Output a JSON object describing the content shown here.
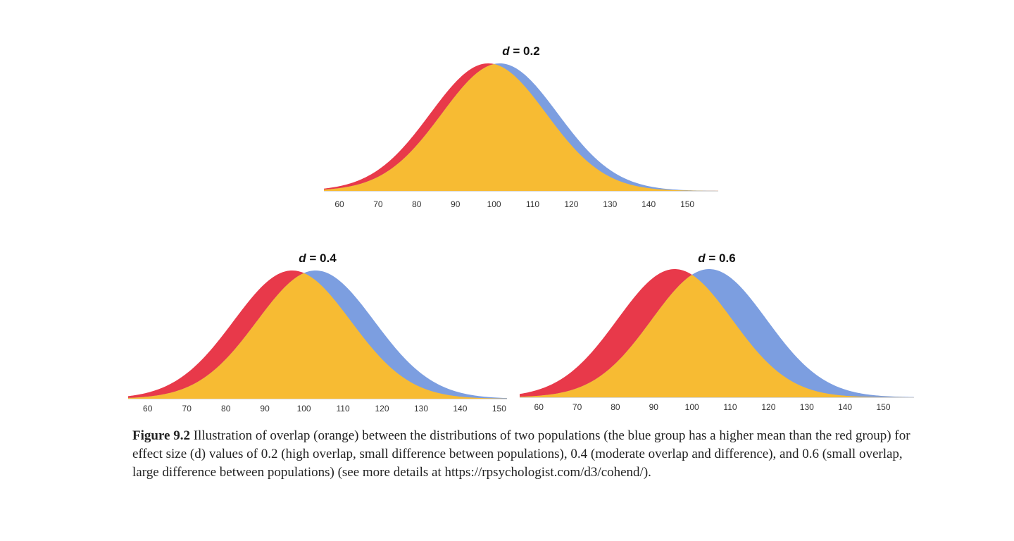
{
  "colors": {
    "red": "#e8394a",
    "blue": "#7c9ee0",
    "overlap": "#f7bb33"
  },
  "chart_data": [
    {
      "type": "area",
      "title_symbol": "d",
      "title_rest": " = 0.2",
      "effect_size": 0.2,
      "series": [
        {
          "name": "red group",
          "color": "red",
          "mean": 98.5,
          "sd": 15
        },
        {
          "name": "blue group",
          "color": "blue",
          "mean": 101.5,
          "sd": 15
        },
        {
          "name": "overlap",
          "color": "orange"
        }
      ],
      "xlim": [
        56,
        158
      ],
      "xticks": [
        "60",
        "70",
        "80",
        "90",
        "100",
        "110",
        "120",
        "130",
        "140",
        "150"
      ],
      "grid": false
    },
    {
      "type": "area",
      "title_symbol": "d",
      "title_rest": " = 0.4",
      "effect_size": 0.4,
      "series": [
        {
          "name": "red group",
          "color": "red",
          "mean": 97,
          "sd": 15
        },
        {
          "name": "blue group",
          "color": "blue",
          "mean": 103,
          "sd": 15
        },
        {
          "name": "overlap",
          "color": "orange"
        }
      ],
      "xlim": [
        55,
        152
      ],
      "xticks": [
        "60",
        "70",
        "80",
        "90",
        "100",
        "110",
        "120",
        "130",
        "140",
        "150"
      ],
      "grid": false
    },
    {
      "type": "area",
      "title_symbol": "d",
      "title_rest": " = 0.6",
      "effect_size": 0.6,
      "series": [
        {
          "name": "red group",
          "color": "red",
          "mean": 95.5,
          "sd": 15
        },
        {
          "name": "blue group",
          "color": "blue",
          "mean": 104.5,
          "sd": 15
        },
        {
          "name": "overlap",
          "color": "orange"
        }
      ],
      "xlim": [
        55,
        158
      ],
      "xticks": [
        "60",
        "70",
        "80",
        "90",
        "100",
        "110",
        "120",
        "130",
        "140",
        "150"
      ],
      "grid": false
    }
  ],
  "caption": {
    "label": "Figure 9.2",
    "text": "  Illustration of overlap (orange) between the distributions of two populations (the blue group has a higher mean than the red group) for effect size (d) values of 0.2 (high overlap, small difference between populations), 0.4 (moderate overlap and difference), and 0.6 (small overlap, large difference between populations) (see more details at https://rpsychologist.com/d3/cohend/)."
  }
}
